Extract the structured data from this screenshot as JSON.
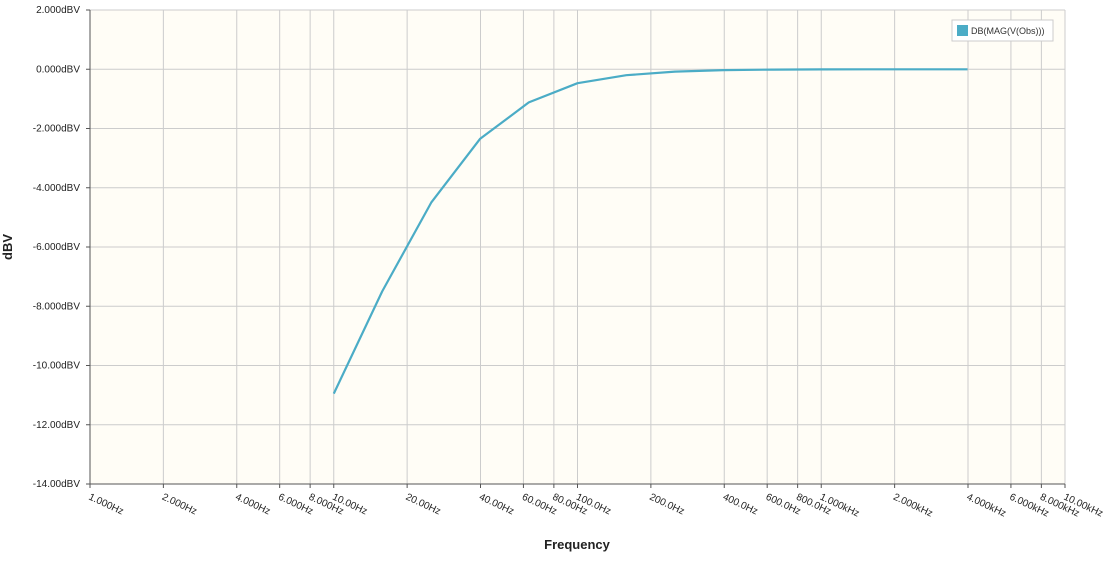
{
  "chart_data": {
    "type": "line",
    "title": "",
    "xlabel": "Frequency",
    "ylabel": "dBV",
    "x_scale": "log",
    "xlim": [
      1,
      10000
    ],
    "ylim": [
      -14,
      2
    ],
    "grid": true,
    "legend_position": "top-right",
    "background_color": "#fffdf6",
    "grid_color": "#cccccc",
    "y_ticks": [
      {
        "value": 2,
        "label": "2.000dBV"
      },
      {
        "value": 0,
        "label": "0.000dBV"
      },
      {
        "value": -2,
        "label": "-2.000dBV"
      },
      {
        "value": -4,
        "label": "-4.000dBV"
      },
      {
        "value": -6,
        "label": "-6.000dBV"
      },
      {
        "value": -8,
        "label": "-8.000dBV"
      },
      {
        "value": -10,
        "label": "-10.00dBV"
      },
      {
        "value": -12,
        "label": "-12.00dBV"
      },
      {
        "value": -14,
        "label": "-14.00dBV"
      }
    ],
    "x_ticks": [
      {
        "value": 1,
        "label": "1.000Hz"
      },
      {
        "value": 2,
        "label": "2.000Hz"
      },
      {
        "value": 4,
        "label": "4.000Hz"
      },
      {
        "value": 6,
        "label": "6.000Hz"
      },
      {
        "value": 8,
        "label": "8.000Hz"
      },
      {
        "value": 10,
        "label": "10.00Hz"
      },
      {
        "value": 20,
        "label": "20.00Hz"
      },
      {
        "value": 40,
        "label": "40.00Hz"
      },
      {
        "value": 60,
        "label": "60.00Hz"
      },
      {
        "value": 80,
        "label": "80.00Hz"
      },
      {
        "value": 100,
        "label": "100.0Hz"
      },
      {
        "value": 200,
        "label": "200.0Hz"
      },
      {
        "value": 400,
        "label": "400.0Hz"
      },
      {
        "value": 600,
        "label": "600.0Hz"
      },
      {
        "value": 800,
        "label": "800.0Hz"
      },
      {
        "value": 1000,
        "label": "1.000kHz"
      },
      {
        "value": 2000,
        "label": "2.000kHz"
      },
      {
        "value": 4000,
        "label": "4.000kHz"
      },
      {
        "value": 6000,
        "label": "6.000kHz"
      },
      {
        "value": 8000,
        "label": "8.000kHz"
      },
      {
        "value": 10000,
        "label": "10.00kHz"
      }
    ],
    "series": [
      {
        "name": "DB(MAG(V(Obs)))",
        "color": "#4bacc6",
        "x": [
          10,
          15.8,
          25.1,
          39.8,
          63.1,
          100,
          158.5,
          251.2,
          398.1,
          631,
          1000,
          1585,
          2512,
          3981
        ],
        "y": [
          -10.95,
          -7.5,
          -4.5,
          -2.35,
          -1.12,
          -0.47,
          -0.2,
          -0.08,
          -0.03,
          -0.013,
          -0.005,
          -0.002,
          -0.001,
          0
        ]
      }
    ]
  }
}
